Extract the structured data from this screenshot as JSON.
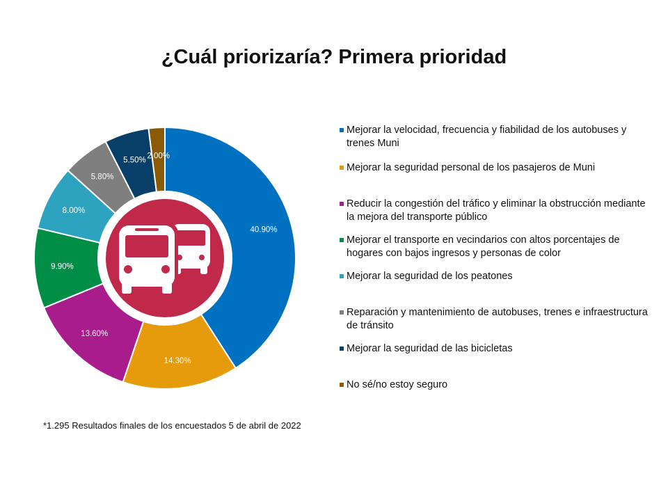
{
  "title": "¿Cuál priorizaría? Primera prioridad",
  "footnote": "*1.295 Resultados finales de los encuestados 5 de abril de 2022",
  "center_icon": "bus-icon",
  "center_color": "#c0294a",
  "chart_data": {
    "type": "pie",
    "donut": true,
    "legend_position": "right",
    "slices": [
      {
        "label": "Mejorar la velocidad, frecuencia y fiabilidad de los autobuses y trenes Muni",
        "value": 40.9,
        "display": "40.90%",
        "color": "#0070c0"
      },
      {
        "label": "Mejorar la seguridad personal de los pasajeros de Muni",
        "value": 14.3,
        "display": "14.30%",
        "color": "#e59b0c"
      },
      {
        "label": "Reducir la congestión del tráfico y eliminar la obstrucción mediante la mejora del transporte público",
        "value": 13.6,
        "display": "13.60%",
        "color": "#a81d8b"
      },
      {
        "label": "Mejorar el transporte en vecindarios con altos porcentajes de hogares con bajos ingresos y personas de color",
        "value": 9.9,
        "display": "9.90%",
        "color": "#008e46"
      },
      {
        "label": "Mejorar la seguridad de los peatones",
        "value": 8.0,
        "display": "8.00%",
        "color": "#2ea3c0"
      },
      {
        "label": "Reparación y mantenimiento de autobuses, trenes e infraestructura de tránsito",
        "value": 5.8,
        "display": "5.80%",
        "color": "#7f7f7f"
      },
      {
        "label": "Mejorar la seguridad de las bicicletas",
        "value": 5.5,
        "display": "5.50%",
        "color": "#073f69"
      },
      {
        "label": "No sé/no estoy seguro",
        "value": 2.0,
        "display": "2.00%",
        "color": "#8b5a06"
      }
    ]
  }
}
